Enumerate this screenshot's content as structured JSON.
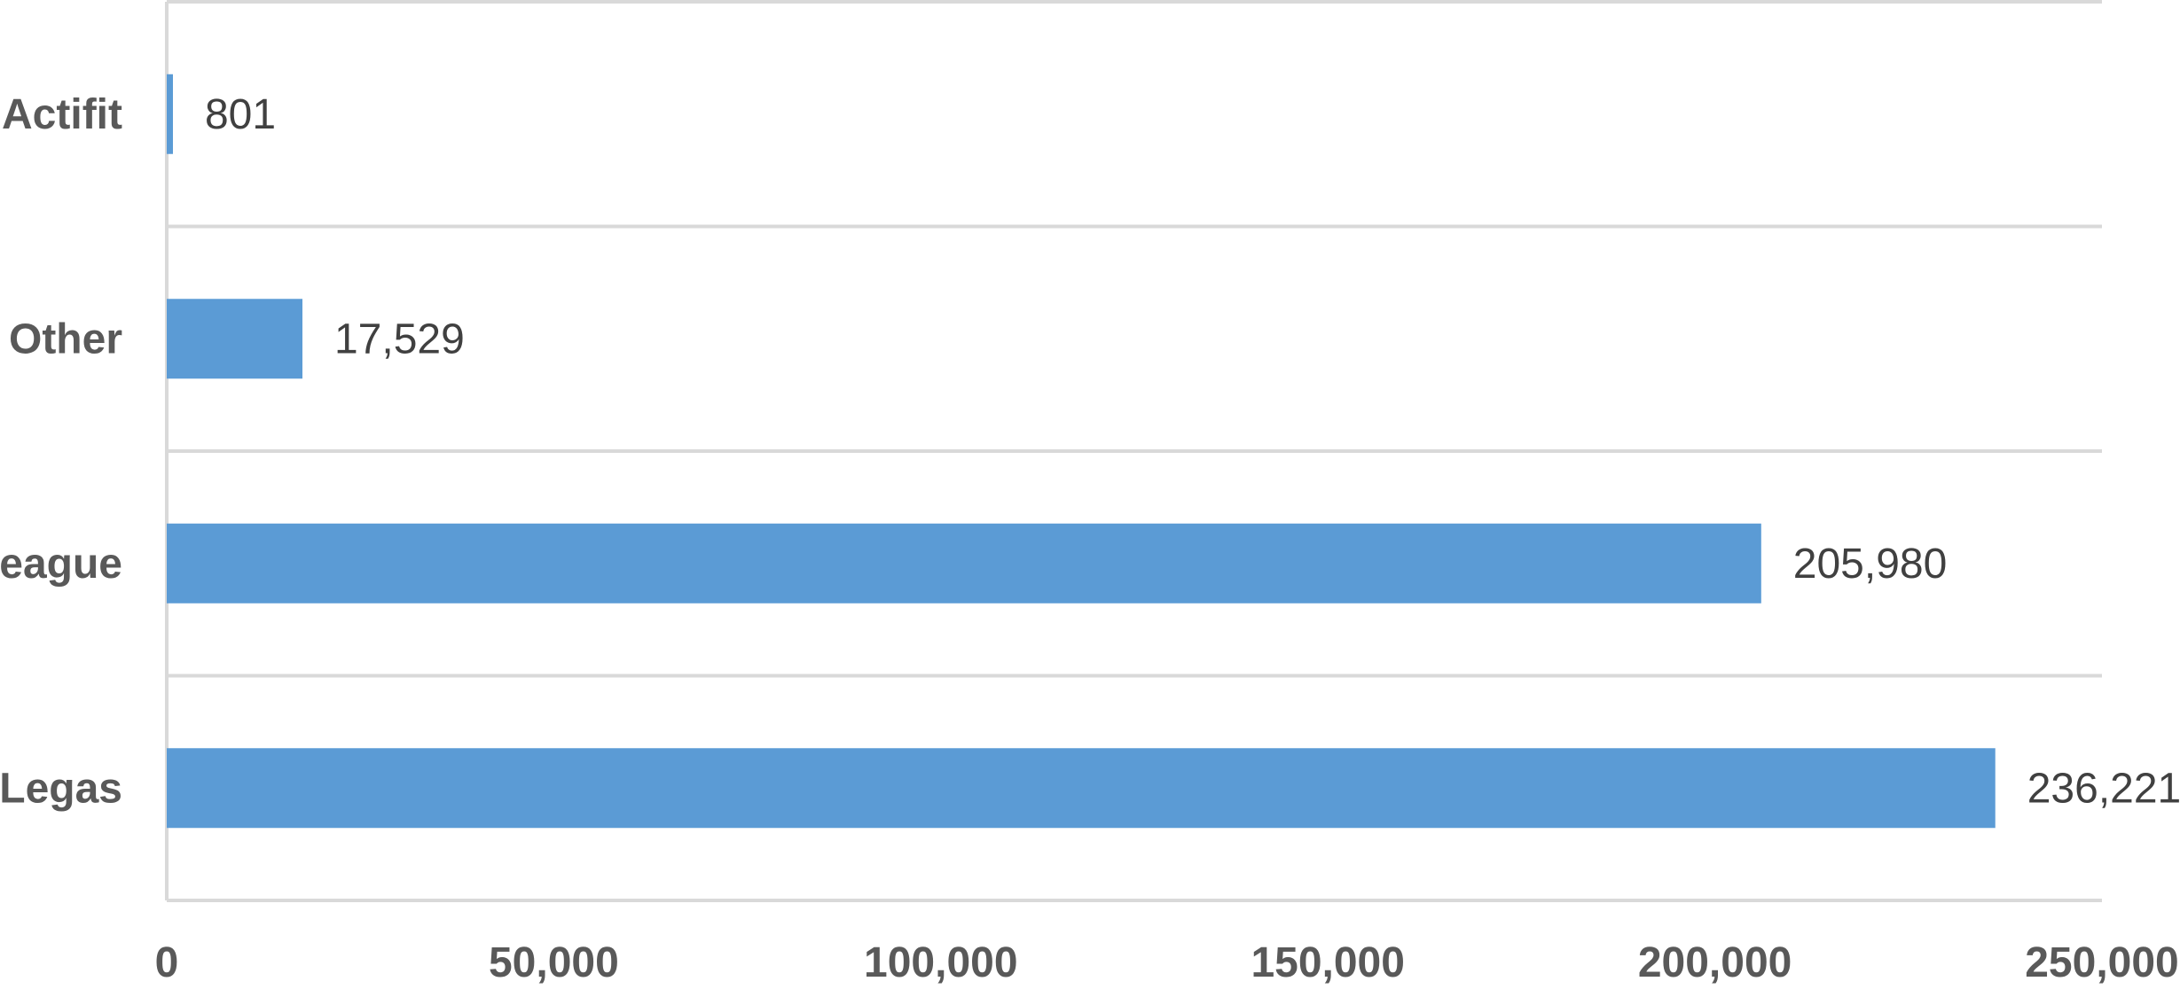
{
  "chart_data": {
    "type": "bar",
    "orientation": "horizontal",
    "categories": [
      "Actifit",
      "Other",
      "League",
      "Legas"
    ],
    "values": [
      801,
      17529,
      205980,
      236221
    ],
    "data_labels": [
      "801",
      "17,529",
      "205,980",
      "236,221"
    ],
    "xlim": [
      0,
      250000
    ],
    "x_ticks": [
      0,
      50000,
      100000,
      150000,
      200000,
      250000
    ],
    "x_tick_labels": [
      "0",
      "50,000",
      "100,000",
      "150,000",
      "200,000",
      "250,000"
    ],
    "title": "",
    "xlabel": "",
    "ylabel": "",
    "grid": "horizontal-category-separators",
    "legend": "none",
    "bar_color": "#5B9BD5",
    "grid_color": "#D9D9D9"
  }
}
